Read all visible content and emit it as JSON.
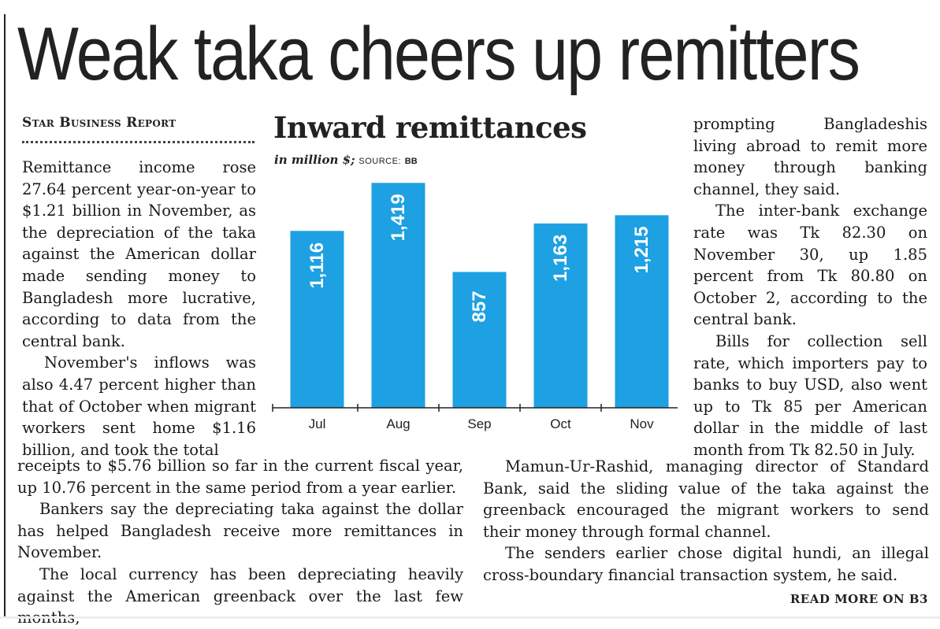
{
  "headline": "Weak taka cheers up remitters",
  "byline": "Star Business Report",
  "left_column": [
    "Remittance income rose 27.64 percent year-on-year to $1.21 billion in November, as the depreciation of the taka against the American dollar made sending money to Bangladesh more lucrative, according to data from the central bank.",
    "November's inflows was also 4.47 percent higher than that of October when migrant workers sent home $1.16 billion, and took the total"
  ],
  "left_column_wide": [
    "receipts to $5.76 billion so far in the current fiscal year, up 10.76 percent in the same period from a year earlier.",
    "Bankers say the depreciating taka against the dollar has helped Bangladesh receive more remittances in November.",
    "The local currency has been depreciating heavily against the American greenback over the last few months,"
  ],
  "right_column": [
    "prompting Bangladeshis living abroad to remit more money through banking channel, they said.",
    "The inter-bank exchange rate was Tk 82.30 on November 30, up 1.85 percent from Tk 80.80 on October 2, according to the central bank.",
    "Bills for collection sell rate, which importers pay to banks to buy USD, also went up to Tk 85 per American dollar in the middle of last month from Tk 82.50 in July."
  ],
  "right_column_wide": [
    "Mamun-Ur-Rashid, managing director of Standard Bank, said the sliding value of the taka against the greenback encouraged the migrant workers to send their money through formal channel.",
    "The senders earlier chose digital hundi, an illegal cross-boundary financial transaction system, he said."
  ],
  "read_more": "READ MORE ON B3",
  "chart_header": {
    "title": "Inward remittances",
    "units": "in million $;",
    "source_label": "SOURCE:",
    "source_value": "BB"
  },
  "chart_data": {
    "type": "bar",
    "title": "Inward remittances",
    "subtitle": "in million $; SOURCE: BB",
    "categories": [
      "Jul",
      "Aug",
      "Sep",
      "Oct",
      "Nov"
    ],
    "values": [
      1116,
      1419,
      857,
      1163,
      1215
    ],
    "labels": [
      "1,116",
      "1,419",
      "857",
      "1,163",
      "1,215"
    ],
    "ylim": [
      0,
      1500
    ],
    "grid": false,
    "bar_color": "#1da1e2",
    "label_color": "#ffffff"
  }
}
